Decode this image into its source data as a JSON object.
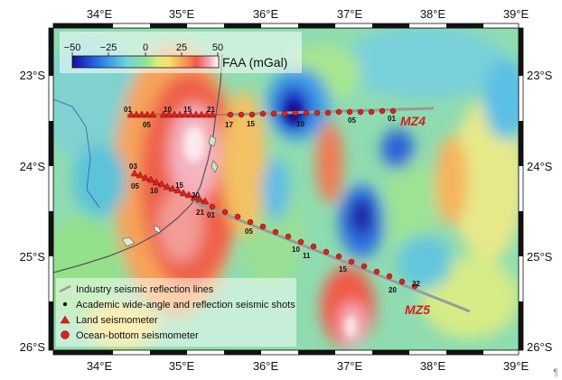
{
  "map": {
    "lon_ticks": [
      "34°E",
      "35°E",
      "36°E",
      "37°E",
      "38°E",
      "39°E"
    ],
    "lat_ticks": [
      "23°S",
      "24°S",
      "25°S",
      "26°S"
    ]
  },
  "colorbar": {
    "ticks": [
      "−50",
      "−25",
      "0",
      "25",
      "50"
    ],
    "title": "FAA (mGal)",
    "colors": [
      "#1a0a9c",
      "#1f4fd6",
      "#3c9ae8",
      "#6fd3d8",
      "#8fe39a",
      "#d7ef7a",
      "#f7e06a",
      "#f8a35a",
      "#ee5b4a",
      "#f2a3b4",
      "#ffffff"
    ]
  },
  "profiles": {
    "mz4": {
      "label": "MZ4",
      "land_labels": [
        "01",
        "05",
        "10",
        "15",
        "21"
      ],
      "obs_labels": [
        "17",
        "15",
        "10",
        "05",
        "01"
      ]
    },
    "mz5": {
      "label": "MZ5",
      "land_labels": [
        "03",
        "05",
        "10",
        "15",
        "20",
        "21"
      ],
      "obs_labels": [
        "01",
        "05",
        "10",
        "11",
        "15",
        "20",
        "22"
      ]
    }
  },
  "legend": {
    "items": [
      {
        "symbol": "line",
        "label": "Industry seismic reflection lines"
      },
      {
        "symbol": "dot",
        "label": "Academic wide-angle and reflection seismic shots"
      },
      {
        "symbol": "triangle",
        "label": "Land seismometer"
      },
      {
        "symbol": "circle",
        "label": "Ocean-bottom seismometer"
      }
    ]
  },
  "colors": {
    "station": "#d9231f",
    "industry_line": "#9a9a9a",
    "coast": "#555555"
  },
  "pilcrow": "¶"
}
